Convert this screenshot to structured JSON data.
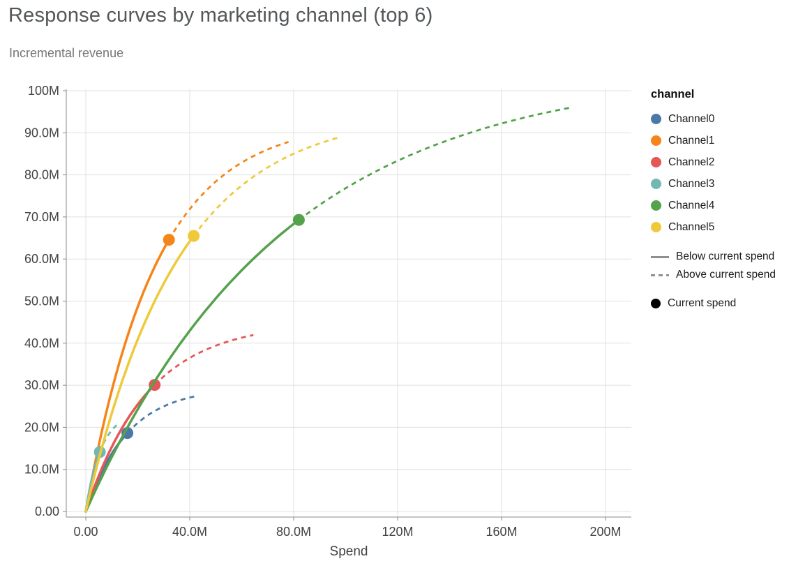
{
  "chart_data": {
    "type": "line",
    "title": "Response curves by marketing channel (top 6)",
    "subtitle": "Incremental revenue",
    "xlabel": "Spend",
    "ylabel": "Incremental revenue",
    "curve_model": "revenue_m = sat_max_m * (1 - exp(-spend_m / spend_scale_m)); solid segment from 0 to current_spend_m, dashed segment from current_spend_m to max_spend_m",
    "x_axis": {
      "label": "Spend",
      "ticks": [
        {
          "label": "0.00",
          "value_m": 0
        },
        {
          "label": "40.0M",
          "value_m": 40
        },
        {
          "label": "80.0M",
          "value_m": 80
        },
        {
          "label": "120M",
          "value_m": 120
        },
        {
          "label": "160M",
          "value_m": 160
        },
        {
          "label": "200M",
          "value_m": 200
        }
      ]
    },
    "y_axis": {
      "label": "Incremental revenue",
      "ticks": [
        {
          "label": "0.00",
          "value_m": 0
        },
        {
          "label": "10.0M",
          "value_m": 10
        },
        {
          "label": "20.0M",
          "value_m": 20
        },
        {
          "label": "30.0M",
          "value_m": 30
        },
        {
          "label": "40.0M",
          "value_m": 40
        },
        {
          "label": "50.0M",
          "value_m": 50
        },
        {
          "label": "60.0M",
          "value_m": 60
        },
        {
          "label": "70.0M",
          "value_m": 70
        },
        {
          "label": "80.0M",
          "value_m": 80
        },
        {
          "label": "90.0M",
          "value_m": 90
        },
        {
          "label": "100M",
          "value_m": 100
        }
      ]
    },
    "series": [
      {
        "name": "Channel0",
        "color": "#4c78a8",
        "sat_max_m": 29.5,
        "spend_scale_m": 16,
        "current_spend_m": 16,
        "current_revenue_m": 18.7,
        "max_spend_m": 42.5,
        "max_revenue_m": 27.5
      },
      {
        "name": "Channel1",
        "color": "#f58518",
        "sat_max_m": 93,
        "spend_scale_m": 27,
        "current_spend_m": 32,
        "current_revenue_m": 64.5,
        "max_spend_m": 78,
        "max_revenue_m": 87.6
      },
      {
        "name": "Channel2",
        "color": "#e45756",
        "sat_max_m": 45,
        "spend_scale_m": 24,
        "current_spend_m": 26.5,
        "current_revenue_m": 30.0,
        "max_spend_m": 64.5,
        "max_revenue_m": 42.2
      },
      {
        "name": "Channel3",
        "color": "#72b7b2",
        "sat_max_m": 23.8,
        "spend_scale_m": 6,
        "current_spend_m": 5.4,
        "current_revenue_m": 14.1,
        "max_spend_m": 13,
        "max_revenue_m": 21.1
      },
      {
        "name": "Channel4",
        "color": "#54a24b",
        "sat_max_m": 105,
        "spend_scale_m": 76,
        "current_spend_m": 82,
        "current_revenue_m": 69.6,
        "max_spend_m": 187,
        "max_revenue_m": 95.5
      },
      {
        "name": "Channel5",
        "color": "#eeca3b",
        "sat_max_m": 95,
        "spend_scale_m": 35.5,
        "current_spend_m": 41.5,
        "current_revenue_m": 65.5,
        "max_spend_m": 98,
        "max_revenue_m": 89.6
      }
    ],
    "legend": {
      "title": "channel",
      "line_styles": [
        {
          "label": "Below current spend",
          "style": "solid"
        },
        {
          "label": "Above current spend",
          "style": "dashed"
        }
      ],
      "current_spend_label": "Current spend",
      "sample_color": "#8f8f8f",
      "marker_color": "#000000"
    },
    "colors": {
      "grid": "#e0e0e0",
      "axis": "#8a8a8a",
      "tick_label": "#424242"
    }
  }
}
